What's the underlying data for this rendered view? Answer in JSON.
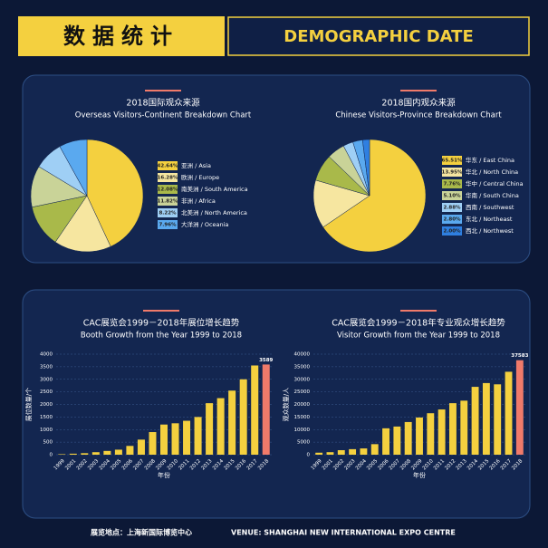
{
  "header": {
    "title": "数据统计",
    "subtitle": "DEMOGRAPHIC DATE"
  },
  "chart_data": [
    {
      "type": "pie",
      "title": "2018国际观众来源",
      "subtitle": "Overseas Visitors-Continent Breakdown Chart",
      "categories": [
        "亚洲 / Asia",
        "欧洲 / Europe",
        "南美洲 / South America",
        "非洲 / Africa",
        "北美洲 / North America",
        "大洋洲 / Oceania"
      ],
      "values": [
        42.64,
        16.28,
        12.08,
        11.82,
        8.22,
        7.96
      ],
      "value_labels": [
        "42.64%",
        "16.28%",
        "12.08%",
        "11.82%",
        "8.22%",
        "7.96%"
      ],
      "colors": [
        "#f4d03f",
        "#f6e6a0",
        "#a9b94a",
        "#c9d398",
        "#9fcff5",
        "#5aa9ef"
      ]
    },
    {
      "type": "pie",
      "title": "2018国内观众来源",
      "subtitle": "Chinese Visitors-Province Breakdown Chart",
      "categories": [
        "华东 / East China",
        "华北 / North China",
        "华中 / Central China",
        "华南 / South China",
        "西南 / Southwest",
        "东北 / Northeast",
        "西北 / Northwest"
      ],
      "values": [
        65.51,
        13.95,
        7.76,
        5.1,
        2.88,
        2.8,
        2.0
      ],
      "value_labels": [
        "65.51%",
        "13.95%",
        "7.76%",
        "5.10%",
        "2.88%",
        "2.80%",
        "2.00%"
      ],
      "colors": [
        "#f4d03f",
        "#f6e6a0",
        "#a9b94a",
        "#c9d398",
        "#9fcff5",
        "#5aa9ef",
        "#2f7fe0"
      ]
    },
    {
      "type": "bar",
      "title": "CAC展览会1999－2018年展位增长趋势",
      "subtitle": "Booth Growth from the Year 1999 to 2018",
      "y_label": "展位数量/个",
      "x_label": "年份",
      "categories": [
        "1999",
        "2001",
        "2002",
        "2003",
        "2004",
        "2005",
        "2006",
        "2007",
        "2008",
        "2009",
        "2010",
        "2011",
        "2012",
        "2013",
        "2014",
        "2015",
        "2016",
        "2017",
        "2018"
      ],
      "values": [
        20,
        40,
        60,
        100,
        150,
        200,
        350,
        600,
        900,
        1200,
        1250,
        1350,
        1500,
        2050,
        2250,
        2550,
        3000,
        3550,
        3589
      ],
      "color": "#f4d03f",
      "highlight_color": "#f07a6a",
      "highlight_last": true,
      "label_last": true,
      "ylim": [
        0,
        4000
      ],
      "yticks": [
        0,
        500,
        1000,
        1500,
        2000,
        2500,
        3000,
        3500,
        4000
      ],
      "grid": true
    },
    {
      "type": "bar",
      "title": "CAC展览会1999－2018年专业观众增长趋势",
      "subtitle": "Visitor Growth from the Year 1999 to 2018",
      "y_label": "观众数量/人",
      "x_label": "年份",
      "categories": [
        "1999",
        "2001",
        "2002",
        "2003",
        "2004",
        "2005",
        "2006",
        "2007",
        "2008",
        "2009",
        "2010",
        "2011",
        "2012",
        "2013",
        "2014",
        "2015",
        "2016",
        "2017",
        "2018"
      ],
      "values": [
        800,
        1000,
        1800,
        2200,
        2500,
        4200,
        10500,
        11200,
        13000,
        14800,
        16500,
        18000,
        20500,
        21500,
        27000,
        28500,
        28000,
        33000,
        37583
      ],
      "color": "#f4d03f",
      "highlight_color": "#f07a6a",
      "highlight_last": true,
      "label_last": true,
      "ylim": [
        0,
        40000
      ],
      "yticks": [
        0,
        5000,
        10000,
        15000,
        20000,
        25000,
        30000,
        35000,
        40000
      ],
      "grid": true
    }
  ],
  "footer": {
    "location": "展览地点：上海新国际博览中心",
    "venue": "VENUE: SHANGHAI NEW INTERNATIONAL EXPO CENTRE"
  }
}
